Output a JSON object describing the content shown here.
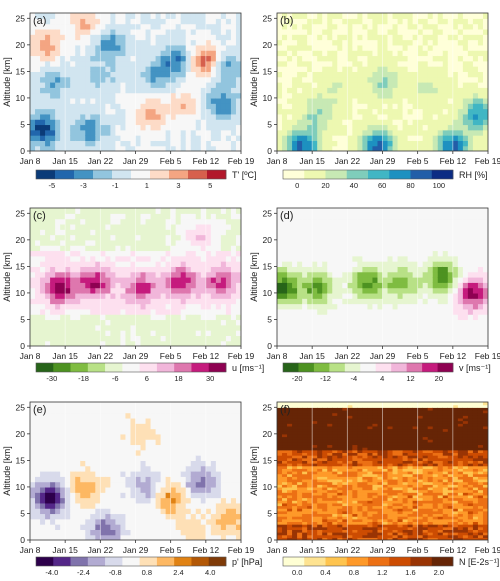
{
  "figure": {
    "x_tick_labels": [
      "Jan 8",
      "Jan 15",
      "Jan 22",
      "Jan 29",
      "Feb 5",
      "Feb 12",
      "Feb 19"
    ],
    "y_tick_labels": [
      "0",
      "5",
      "10",
      "15",
      "20",
      "25"
    ],
    "ylabel": "Altitude [km]"
  },
  "chart_data": [
    {
      "type": "heatmap",
      "panel_label": "(a)",
      "colorbar_label": "T' [ºC]",
      "colorbar_ticks": [
        "-5",
        "-3",
        "-1",
        "1",
        "3",
        "5"
      ],
      "value_range": [
        -5,
        5
      ],
      "colors": [
        "#0b3b78",
        "#2166ac",
        "#4393c3",
        "#92c5de",
        "#d1e5f0",
        "#f7f7f7",
        "#fddbc7",
        "#f4a582",
        "#d6604d",
        "#b2182b"
      ],
      "x": [
        "Jan 8",
        "Feb 19"
      ],
      "ylim": [
        0,
        25
      ],
      "blobs": [
        {
          "day": 2.5,
          "alt": 4,
          "value": -4.5
        },
        {
          "day": 12,
          "alt": 4,
          "value": -2.5
        },
        {
          "day": 24,
          "alt": 7,
          "value": 2.5
        },
        {
          "day": 31,
          "alt": 9,
          "value": 2
        },
        {
          "day": 38,
          "alt": 9,
          "value": -3
        },
        {
          "day": 29,
          "alt": 17,
          "value": -3
        },
        {
          "day": 35,
          "alt": 17,
          "value": 4
        },
        {
          "day": 16,
          "alt": 20,
          "value": -2.5
        },
        {
          "day": 3,
          "alt": 20,
          "value": 2.5
        },
        {
          "day": 5,
          "alt": 13,
          "value": -2
        },
        {
          "day": 25,
          "alt": 14,
          "value": -2
        },
        {
          "day": 14,
          "alt": 14,
          "value": -1.5
        },
        {
          "day": 39,
          "alt": 16,
          "value": -2.5
        },
        {
          "day": 11,
          "alt": 24,
          "value": 2
        }
      ]
    },
    {
      "type": "heatmap",
      "panel_label": "(b)",
      "colorbar_label": "RH [%]",
      "colorbar_ticks": [
        "0",
        "20",
        "40",
        "60",
        "80",
        "100"
      ],
      "value_range": [
        0,
        100
      ],
      "colors": [
        "#ffffd9",
        "#edf8b1",
        "#c7e9b4",
        "#7fcdbb",
        "#41b6c4",
        "#1d91c0",
        "#225ea8",
        "#0c2c84"
      ],
      "x": [
        "Jan 8",
        "Feb 19"
      ],
      "ylim": [
        0,
        25
      ],
      "blobs": [
        {
          "day": 20,
          "alt": 1,
          "value": 80
        },
        {
          "day": 5,
          "alt": 1,
          "value": 80
        },
        {
          "day": 35,
          "alt": 1,
          "value": 80
        },
        {
          "day": 40,
          "alt": 7,
          "value": 65
        },
        {
          "day": 8,
          "alt": 7,
          "value": 40
        },
        {
          "day": 21,
          "alt": 13,
          "value": 40
        },
        {
          "day": 30,
          "alt": 12,
          "value": 30
        },
        {
          "day": 12,
          "alt": 12,
          "value": 25
        }
      ]
    },
    {
      "type": "heatmap",
      "panel_label": "(c)",
      "colorbar_label": "u [ms⁻¹]",
      "colorbar_ticks": [
        "-30",
        "-18",
        "-6",
        "6",
        "18",
        "30"
      ],
      "value_range": [
        -30,
        30
      ],
      "colors": [
        "#276419",
        "#4d9221",
        "#7fbc41",
        "#b8e186",
        "#e6f5d0",
        "#f7f7f7",
        "#fde0ef",
        "#f1b6da",
        "#de77ae",
        "#c51b7d",
        "#8e0152"
      ],
      "x": [
        "Jan 8",
        "Feb 19"
      ],
      "ylim": [
        0,
        25
      ],
      "blobs": [
        {
          "day": 6,
          "alt": 11,
          "value": 28
        },
        {
          "day": 13,
          "alt": 12,
          "value": 26
        },
        {
          "day": 22,
          "alt": 11,
          "value": 22
        },
        {
          "day": 30,
          "alt": 12,
          "value": 24
        },
        {
          "day": 38,
          "alt": 12,
          "value": 22
        },
        {
          "day": 34,
          "alt": 21,
          "value": 8
        },
        {
          "day": 8,
          "alt": 2,
          "value": -6
        }
      ]
    },
    {
      "type": "heatmap",
      "panel_label": "(d)",
      "colorbar_label": "v [ms⁻¹]",
      "colorbar_ticks": [
        "-20",
        "-12",
        "-4",
        "4",
        "12",
        "20"
      ],
      "value_range": [
        -20,
        20
      ],
      "colors": [
        "#276419",
        "#4d9221",
        "#7fbc41",
        "#b8e186",
        "#e6f5d0",
        "#f7f7f7",
        "#fde0ef",
        "#f1b6da",
        "#de77ae",
        "#c51b7d",
        "#8e0152"
      ],
      "x": [
        "Jan 8",
        "Feb 19"
      ],
      "ylim": [
        0,
        25
      ],
      "blobs": [
        {
          "day": 1,
          "alt": 11,
          "value": -18
        },
        {
          "day": 8,
          "alt": 11,
          "value": -14
        },
        {
          "day": 18,
          "alt": 12,
          "value": -14
        },
        {
          "day": 25,
          "alt": 12,
          "value": -12
        },
        {
          "day": 33,
          "alt": 13,
          "value": -16
        },
        {
          "day": 39,
          "alt": 10,
          "value": 18
        }
      ]
    },
    {
      "type": "heatmap",
      "panel_label": "(e)",
      "colorbar_label": "p' [hPa]",
      "colorbar_ticks": [
        "-4.0",
        "-2.4",
        "-0.8",
        "0.8",
        "2.4",
        "4.0"
      ],
      "value_range": [
        -4,
        4
      ],
      "colors": [
        "#2d004b",
        "#542788",
        "#8073ac",
        "#b2abd2",
        "#d8daeb",
        "#f7f7f7",
        "#fee0b6",
        "#fdb863",
        "#e08214",
        "#b35806",
        "#7f3b08"
      ],
      "x": [
        "Jan 8",
        "Feb 19"
      ],
      "ylim": [
        0,
        25
      ],
      "blobs": [
        {
          "day": 4,
          "alt": 8,
          "value": -3.8
        },
        {
          "day": 11,
          "alt": 10,
          "value": 1.6
        },
        {
          "day": 15,
          "alt": 2,
          "value": -2.2
        },
        {
          "day": 23,
          "alt": 10,
          "value": -1.6
        },
        {
          "day": 28,
          "alt": 8,
          "value": 2
        },
        {
          "day": 34,
          "alt": 11,
          "value": -2.2
        },
        {
          "day": 40,
          "alt": 4,
          "value": 1.6
        },
        {
          "day": 22,
          "alt": 20,
          "value": 0.8
        },
        {
          "day": 32,
          "alt": 2,
          "value": 0.8
        }
      ]
    },
    {
      "type": "heatmap",
      "panel_label": "(f)",
      "colorbar_label": "N [E-2s⁻¹]",
      "colorbar_ticks": [
        "0.0",
        "0.4",
        "0.8",
        "1.2",
        "1.6",
        "2.0"
      ],
      "value_range": [
        0,
        2
      ],
      "colors": [
        "#ffffd4",
        "#fee391",
        "#fec44f",
        "#fe9929",
        "#ec7014",
        "#cc4c02",
        "#993404",
        "#662506"
      ],
      "x": [
        "Jan 8",
        "Feb 19"
      ],
      "ylim": [
        0,
        25
      ],
      "layers": [
        {
          "alt_from": 0,
          "alt_to": 3,
          "value": 1.4
        },
        {
          "alt_from": 3,
          "alt_to": 9,
          "value": 1.0
        },
        {
          "alt_from": 9,
          "alt_to": 14,
          "value": 0.9
        },
        {
          "alt_from": 14,
          "alt_to": 17,
          "value": 1.4
        },
        {
          "alt_from": 17,
          "alt_to": 25,
          "value": 2.0
        }
      ]
    }
  ]
}
